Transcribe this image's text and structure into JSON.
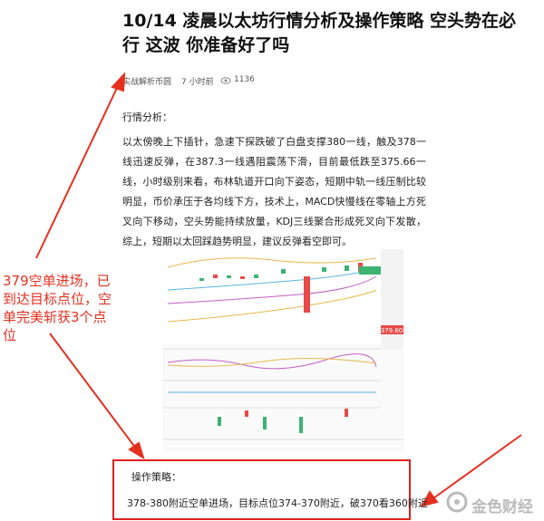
{
  "article": {
    "title": "10/14 凌晨以太坊行情分析及操作策略 空头势在必行 这波 你准备好了吗",
    "author": "实战解析币圆",
    "time": "7 小时前",
    "views": "1136",
    "section_title": "行情分析：",
    "body": "以太傍晚上下插针，急速下探跌破了白盘支撑380一线，触及378一线迅速反弹，在387.3一线遇阻震荡下滑，目前最低跌至375.66一线，小时级别来看，布林轨道开口向下姿态，短期中轨一线压制比较明显，币价承压于各均线下方，技术上，MACD快慢线在零轴上方死叉向下移动，空头势能持续放量，KDJ三线聚合形成死叉向下发散，综上，短期以太回踩趋势明显，建议反弹看空即可。",
    "chart_price": "379.60",
    "annotation": "379空单进场，已到达目标点位，空单完美斩获3个点位",
    "strategy_title": "操作策略：",
    "strategy_body": "378-380附近空单进场，目标点位374-370附近，破370看360附近",
    "watermark": "金色财经"
  }
}
